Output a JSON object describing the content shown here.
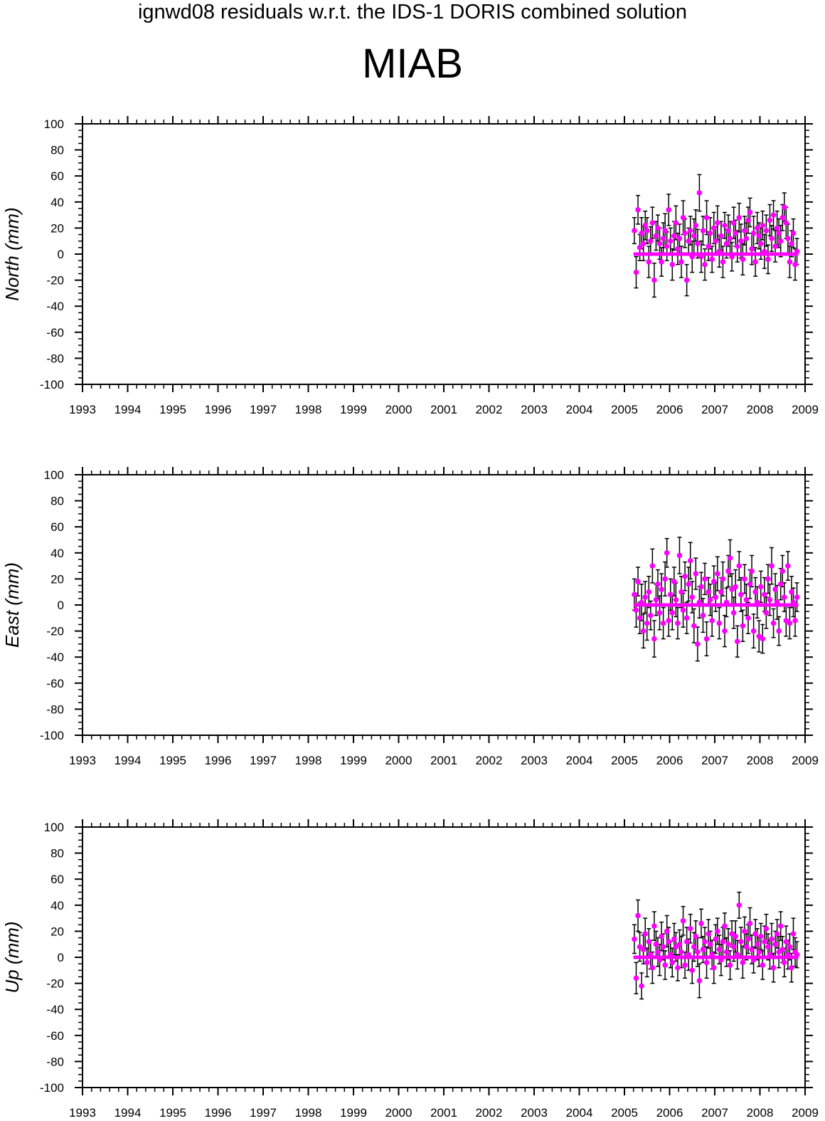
{
  "title": "ignwd08 residuals w.r.t. the IDS-1 DORIS combined solution",
  "station": "MIAB",
  "colors": {
    "points": "#ff00ff",
    "errorbars": "#000000",
    "axes": "#000000"
  },
  "chart_data": [
    {
      "type": "scatter",
      "ylabel": "North (mm)",
      "xlim": [
        1993,
        2009
      ],
      "ylim": [
        -100,
        100
      ],
      "x_ticks": [
        "1993",
        "1994",
        "1995",
        "1996",
        "1997",
        "1998",
        "1999",
        "2000",
        "2001",
        "2002",
        "2003",
        "2004",
        "2005",
        "2006",
        "2007",
        "2008",
        "2009"
      ],
      "y_ticks": [
        "100",
        "80",
        "60",
        "40",
        "20",
        "0",
        "-20",
        "-40",
        "-60",
        "-80",
        "-100"
      ],
      "x": [
        2005.22,
        2005.26,
        2005.3,
        2005.34,
        2005.38,
        2005.42,
        2005.46,
        2005.5,
        2005.54,
        2005.58,
        2005.62,
        2005.66,
        2005.7,
        2005.74,
        2005.78,
        2005.82,
        2005.86,
        2005.9,
        2005.94,
        2005.98,
        2006.02,
        2006.06,
        2006.1,
        2006.14,
        2006.18,
        2006.22,
        2006.26,
        2006.3,
        2006.34,
        2006.38,
        2006.42,
        2006.46,
        2006.5,
        2006.54,
        2006.58,
        2006.62,
        2006.66,
        2006.7,
        2006.74,
        2006.78,
        2006.82,
        2006.86,
        2006.9,
        2006.94,
        2006.98,
        2007.02,
        2007.06,
        2007.1,
        2007.14,
        2007.18,
        2007.22,
        2007.26,
        2007.3,
        2007.34,
        2007.38,
        2007.42,
        2007.46,
        2007.5,
        2007.54,
        2007.58,
        2007.62,
        2007.66,
        2007.7,
        2007.74,
        2007.78,
        2007.82,
        2007.86,
        2007.9,
        2007.94,
        2007.98,
        2008.02,
        2008.06,
        2008.1,
        2008.14,
        2008.18,
        2008.22,
        2008.26,
        2008.3,
        2008.34,
        2008.38,
        2008.42,
        2008.46,
        2008.5,
        2008.54,
        2008.58,
        2008.62,
        2008.66,
        2008.7,
        2008.74,
        2008.78,
        2008.82
      ],
      "y": [
        18,
        -14,
        34,
        5,
        16,
        8,
        22,
        18,
        -6,
        10,
        24,
        -20,
        14,
        20,
        8,
        -6,
        12,
        18,
        6,
        34,
        10,
        -8,
        14,
        24,
        4,
        12,
        -6,
        28,
        16,
        -20,
        10,
        18,
        -2,
        14,
        22,
        8,
        47,
        -2,
        18,
        -8,
        28,
        6,
        16,
        -4,
        20,
        10,
        24,
        2,
        14,
        -6,
        22,
        8,
        18,
        12,
        -2,
        24,
        16,
        6,
        28,
        10,
        -4,
        18,
        12,
        26,
        32,
        4,
        16,
        -6,
        20,
        14,
        8,
        22,
        2,
        18,
        -4,
        26,
        12,
        30,
        6,
        20,
        16,
        10,
        28,
        36,
        24,
        12,
        -6,
        8,
        16,
        -8,
        2
      ],
      "err": [
        10,
        12,
        11,
        10,
        12,
        13,
        11,
        10,
        12,
        11,
        12,
        13,
        11,
        10,
        12,
        11,
        12,
        13,
        11,
        12,
        10,
        12,
        11,
        13,
        12,
        11,
        12,
        13,
        11,
        12,
        10,
        11,
        12,
        13,
        12,
        11,
        14,
        12,
        11,
        12,
        13,
        11,
        12,
        10,
        12,
        11,
        13,
        12,
        11,
        12,
        10,
        11,
        12,
        13,
        11,
        12,
        10,
        12,
        11,
        13,
        12,
        11,
        12,
        10,
        11,
        12,
        13,
        11,
        12,
        10,
        12,
        11,
        13,
        12,
        11,
        12,
        10,
        11,
        12,
        13,
        11,
        12,
        10,
        11,
        12,
        11,
        12,
        10,
        11,
        12,
        10
      ],
      "zero_line": {
        "x": [
          2005.2,
          2008.85
        ],
        "y": 0
      }
    },
    {
      "type": "scatter",
      "ylabel": "East (mm)",
      "xlim": [
        1993,
        2009
      ],
      "ylim": [
        -100,
        100
      ],
      "x_ticks": [
        "1993",
        "1994",
        "1995",
        "1996",
        "1997",
        "1998",
        "1999",
        "2000",
        "2001",
        "2002",
        "2003",
        "2004",
        "2005",
        "2006",
        "2007",
        "2008",
        "2009"
      ],
      "y_ticks": [
        "100",
        "80",
        "60",
        "40",
        "20",
        "0",
        "-20",
        "-40",
        "-60",
        "-80",
        "-100"
      ],
      "x": [
        2005.22,
        2005.26,
        2005.3,
        2005.34,
        2005.38,
        2005.42,
        2005.46,
        2005.5,
        2005.54,
        2005.58,
        2005.62,
        2005.66,
        2005.7,
        2005.74,
        2005.78,
        2005.82,
        2005.86,
        2005.9,
        2005.94,
        2005.98,
        2006.02,
        2006.06,
        2006.1,
        2006.14,
        2006.18,
        2006.22,
        2006.26,
        2006.3,
        2006.34,
        2006.38,
        2006.42,
        2006.46,
        2006.5,
        2006.54,
        2006.58,
        2006.62,
        2006.66,
        2006.7,
        2006.74,
        2006.78,
        2006.82,
        2006.86,
        2006.9,
        2006.94,
        2006.98,
        2007.02,
        2007.06,
        2007.1,
        2007.14,
        2007.18,
        2007.22,
        2007.26,
        2007.3,
        2007.34,
        2007.38,
        2007.42,
        2007.46,
        2007.5,
        2007.54,
        2007.58,
        2007.62,
        2007.66,
        2007.7,
        2007.74,
        2007.78,
        2007.82,
        2007.86,
        2007.9,
        2007.94,
        2007.98,
        2008.02,
        2008.06,
        2008.1,
        2008.14,
        2008.18,
        2008.22,
        2008.26,
        2008.3,
        2008.34,
        2008.38,
        2008.42,
        2008.46,
        2008.5,
        2008.54,
        2008.58,
        2008.62,
        2008.66,
        2008.7,
        2008.74,
        2008.78,
        2008.82
      ],
      "y": [
        8,
        -4,
        18,
        -10,
        2,
        -20,
        6,
        -14,
        10,
        -8,
        30,
        -26,
        4,
        16,
        -6,
        12,
        -14,
        20,
        40,
        -12,
        8,
        -6,
        18,
        4,
        -14,
        38,
        10,
        -4,
        22,
        -10,
        16,
        34,
        6,
        -16,
        24,
        -30,
        2,
        14,
        -8,
        20,
        -26,
        10,
        4,
        -12,
        18,
        6,
        24,
        -14,
        10,
        20,
        -20,
        2,
        26,
        36,
        12,
        -6,
        14,
        -28,
        30,
        8,
        -16,
        20,
        4,
        -10,
        16,
        26,
        -20,
        10,
        2,
        -24,
        14,
        -26,
        8,
        -6,
        20,
        4,
        30,
        -14,
        12,
        2,
        -20,
        16,
        26,
        6,
        -12,
        30,
        -14,
        10,
        2,
        -12,
        6
      ],
      "err": [
        12,
        13,
        11,
        12,
        14,
        13,
        12,
        13,
        12,
        11,
        13,
        14,
        12,
        11,
        13,
        12,
        12,
        13,
        11,
        12,
        12,
        13,
        11,
        13,
        12,
        14,
        12,
        13,
        11,
        12,
        13,
        14,
        12,
        13,
        12,
        13,
        12,
        11,
        13,
        12,
        13,
        11,
        12,
        12,
        12,
        11,
        13,
        12,
        11,
        13,
        12,
        11,
        12,
        14,
        12,
        12,
        13,
        12,
        11,
        13,
        12,
        11,
        12,
        12,
        11,
        12,
        13,
        11,
        12,
        12,
        12,
        11,
        13,
        12,
        11,
        12,
        14,
        11,
        12,
        13,
        11,
        12,
        12,
        11,
        12,
        11,
        12,
        12,
        11,
        12,
        11
      ],
      "zero_line": {
        "x": [
          2005.2,
          2008.85
        ],
        "y": 0
      }
    },
    {
      "type": "scatter",
      "ylabel": "Up (mm)",
      "xlim": [
        1993,
        2009
      ],
      "ylim": [
        -100,
        100
      ],
      "x_ticks": [
        "1993",
        "1994",
        "1995",
        "1996",
        "1997",
        "1998",
        "1999",
        "2000",
        "2001",
        "2002",
        "2003",
        "2004",
        "2005",
        "2006",
        "2007",
        "2008",
        "2009"
      ],
      "y_ticks": [
        "100",
        "80",
        "60",
        "40",
        "20",
        "0",
        "-20",
        "-40",
        "-60",
        "-80",
        "-100"
      ],
      "x": [
        2005.22,
        2005.26,
        2005.3,
        2005.34,
        2005.38,
        2005.42,
        2005.46,
        2005.5,
        2005.54,
        2005.58,
        2005.62,
        2005.66,
        2005.7,
        2005.74,
        2005.78,
        2005.82,
        2005.86,
        2005.9,
        2005.94,
        2005.98,
        2006.02,
        2006.06,
        2006.1,
        2006.14,
        2006.18,
        2006.22,
        2006.26,
        2006.3,
        2006.34,
        2006.38,
        2006.42,
        2006.46,
        2006.5,
        2006.54,
        2006.58,
        2006.62,
        2006.66,
        2006.7,
        2006.74,
        2006.78,
        2006.82,
        2006.86,
        2006.9,
        2006.94,
        2006.98,
        2007.02,
        2007.06,
        2007.1,
        2007.14,
        2007.18,
        2007.22,
        2007.26,
        2007.3,
        2007.34,
        2007.38,
        2007.42,
        2007.46,
        2007.5,
        2007.54,
        2007.58,
        2007.62,
        2007.66,
        2007.7,
        2007.74,
        2007.78,
        2007.82,
        2007.86,
        2007.9,
        2007.94,
        2007.98,
        2008.02,
        2008.06,
        2008.1,
        2008.14,
        2008.18,
        2008.22,
        2008.26,
        2008.3,
        2008.34,
        2008.38,
        2008.42,
        2008.46,
        2008.5,
        2008.54,
        2008.58,
        2008.62,
        2008.66,
        2008.7,
        2008.74,
        2008.78,
        2008.82
      ],
      "y": [
        14,
        -16,
        32,
        8,
        -22,
        6,
        18,
        -4,
        12,
        2,
        -8,
        24,
        10,
        4,
        -2,
        16,
        8,
        -6,
        20,
        12,
        2,
        -4,
        14,
        8,
        -8,
        10,
        4,
        28,
        -6,
        12,
        2,
        22,
        -10,
        8,
        16,
        4,
        -18,
        26,
        6,
        12,
        -4,
        18,
        10,
        2,
        -8,
        14,
        20,
        6,
        -2,
        12,
        24,
        4,
        10,
        -6,
        18,
        8,
        16,
        2,
        40,
        12,
        -4,
        20,
        8,
        14,
        26,
        6,
        -2,
        18,
        10,
        4,
        16,
        -6,
        12,
        22,
        8,
        2,
        14,
        -8,
        10,
        18,
        4,
        24,
        6,
        -4,
        12,
        2,
        8,
        -8,
        18,
        4,
        2
      ],
      "err": [
        11,
        12,
        12,
        11,
        10,
        11,
        12,
        11,
        10,
        11,
        12,
        11,
        10,
        11,
        12,
        11,
        10,
        11,
        12,
        11,
        10,
        11,
        12,
        11,
        10,
        11,
        12,
        11,
        10,
        11,
        12,
        11,
        10,
        11,
        12,
        11,
        13,
        11,
        10,
        11,
        12,
        11,
        10,
        11,
        12,
        11,
        10,
        11,
        12,
        11,
        10,
        11,
        12,
        11,
        10,
        11,
        12,
        11,
        10,
        11,
        12,
        11,
        10,
        11,
        12,
        11,
        10,
        11,
        12,
        11,
        10,
        11,
        12,
        11,
        10,
        11,
        12,
        11,
        10,
        11,
        12,
        11,
        10,
        11,
        12,
        11,
        10,
        11,
        12,
        11,
        10
      ],
      "zero_line": {
        "x": [
          2005.2,
          2008.85
        ],
        "y": 0
      }
    }
  ]
}
